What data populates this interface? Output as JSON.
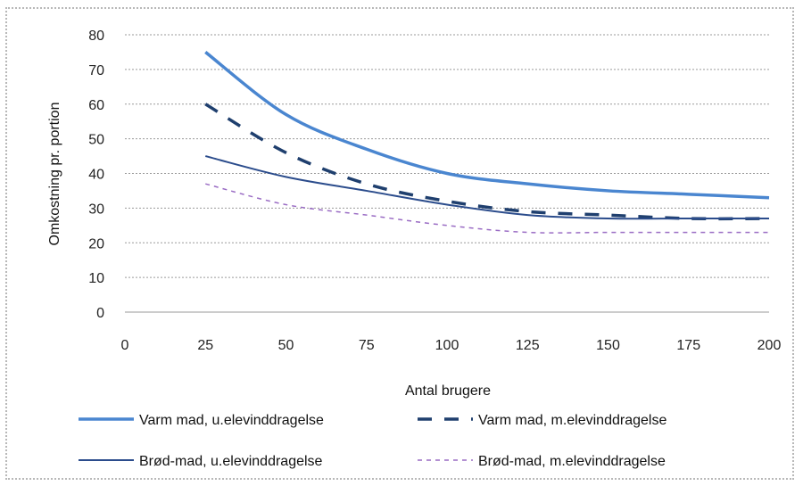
{
  "chart_data": {
    "type": "line",
    "title": "",
    "xlabel": "Antal brugere",
    "ylabel": "Omkostning pr. portion",
    "xlim": [
      0,
      200
    ],
    "ylim": [
      0,
      80
    ],
    "x_ticks": [
      0,
      25,
      50,
      75,
      100,
      125,
      150,
      175,
      200
    ],
    "y_ticks": [
      0,
      10,
      20,
      30,
      40,
      50,
      60,
      70,
      80
    ],
    "grid": "horizontal",
    "legend_position": "bottom",
    "x": [
      25,
      50,
      75,
      100,
      125,
      150,
      175,
      200
    ],
    "series": [
      {
        "name": "Varm mad, u.elevinddragelse",
        "color": "#4a86d0",
        "style": "thick-solid",
        "values": [
          75,
          57,
          47,
          40,
          37,
          35,
          34,
          33
        ]
      },
      {
        "name": "Varm mad, m.elevinddragelse",
        "color": "#1f3f6e",
        "style": "long-dash",
        "values": [
          60,
          46,
          37,
          32,
          29,
          28,
          27,
          27
        ]
      },
      {
        "name": "Brød-mad, u.elevinddragelse",
        "color": "#2b4c8c",
        "style": "thin-solid",
        "values": [
          45,
          39,
          35,
          31,
          28,
          27,
          27,
          27
        ]
      },
      {
        "name": "Brød-mad, m.elevinddragelse",
        "color": "#9a6cc4",
        "style": "short-dash",
        "values": [
          37,
          31,
          28,
          25,
          23,
          23,
          23,
          23
        ]
      }
    ]
  }
}
